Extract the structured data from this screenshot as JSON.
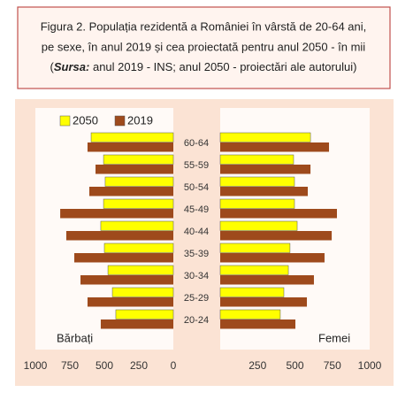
{
  "chart_data": {
    "type": "pyramid",
    "title_lines": [
      "Figura 2. Populația rezidentă a României în vârstă de 20-64 ani,",
      "pe sexe, în anul 2019 și cea proiectată pentru anul 2050  - în mii"
    ],
    "source": {
      "open": "(",
      "label": "Sursa:",
      "text": " anul 2019  - INS; anul 2050  - proiectări ale autorului)"
    },
    "categories": [
      "20-24",
      "25-29",
      "30-34",
      "35-39",
      "40-44",
      "45-49",
      "50-54",
      "55-59",
      "60-64"
    ],
    "left_label": "Bărbați",
    "right_label": "Femei",
    "xlim": [
      0,
      1000
    ],
    "left_xticks": [
      1000,
      750,
      500,
      250,
      0
    ],
    "right_xticks": [
      250,
      500,
      750,
      1000
    ],
    "series": [
      {
        "name": "2050",
        "color": "#ffff00",
        "left": [
          417,
          442,
          474,
          500,
          526,
          506,
          494,
          506,
          596
        ],
        "right": [
          402,
          426,
          456,
          467,
          515,
          497,
          497,
          491,
          604
        ]
      },
      {
        "name": "2019",
        "color": "#9e4a1c",
        "left": [
          526,
          622,
          673,
          718,
          776,
          820,
          609,
          564,
          622
        ],
        "right": [
          503,
          580,
          627,
          698,
          746,
          781,
          586,
          604,
          728
        ]
      }
    ]
  }
}
